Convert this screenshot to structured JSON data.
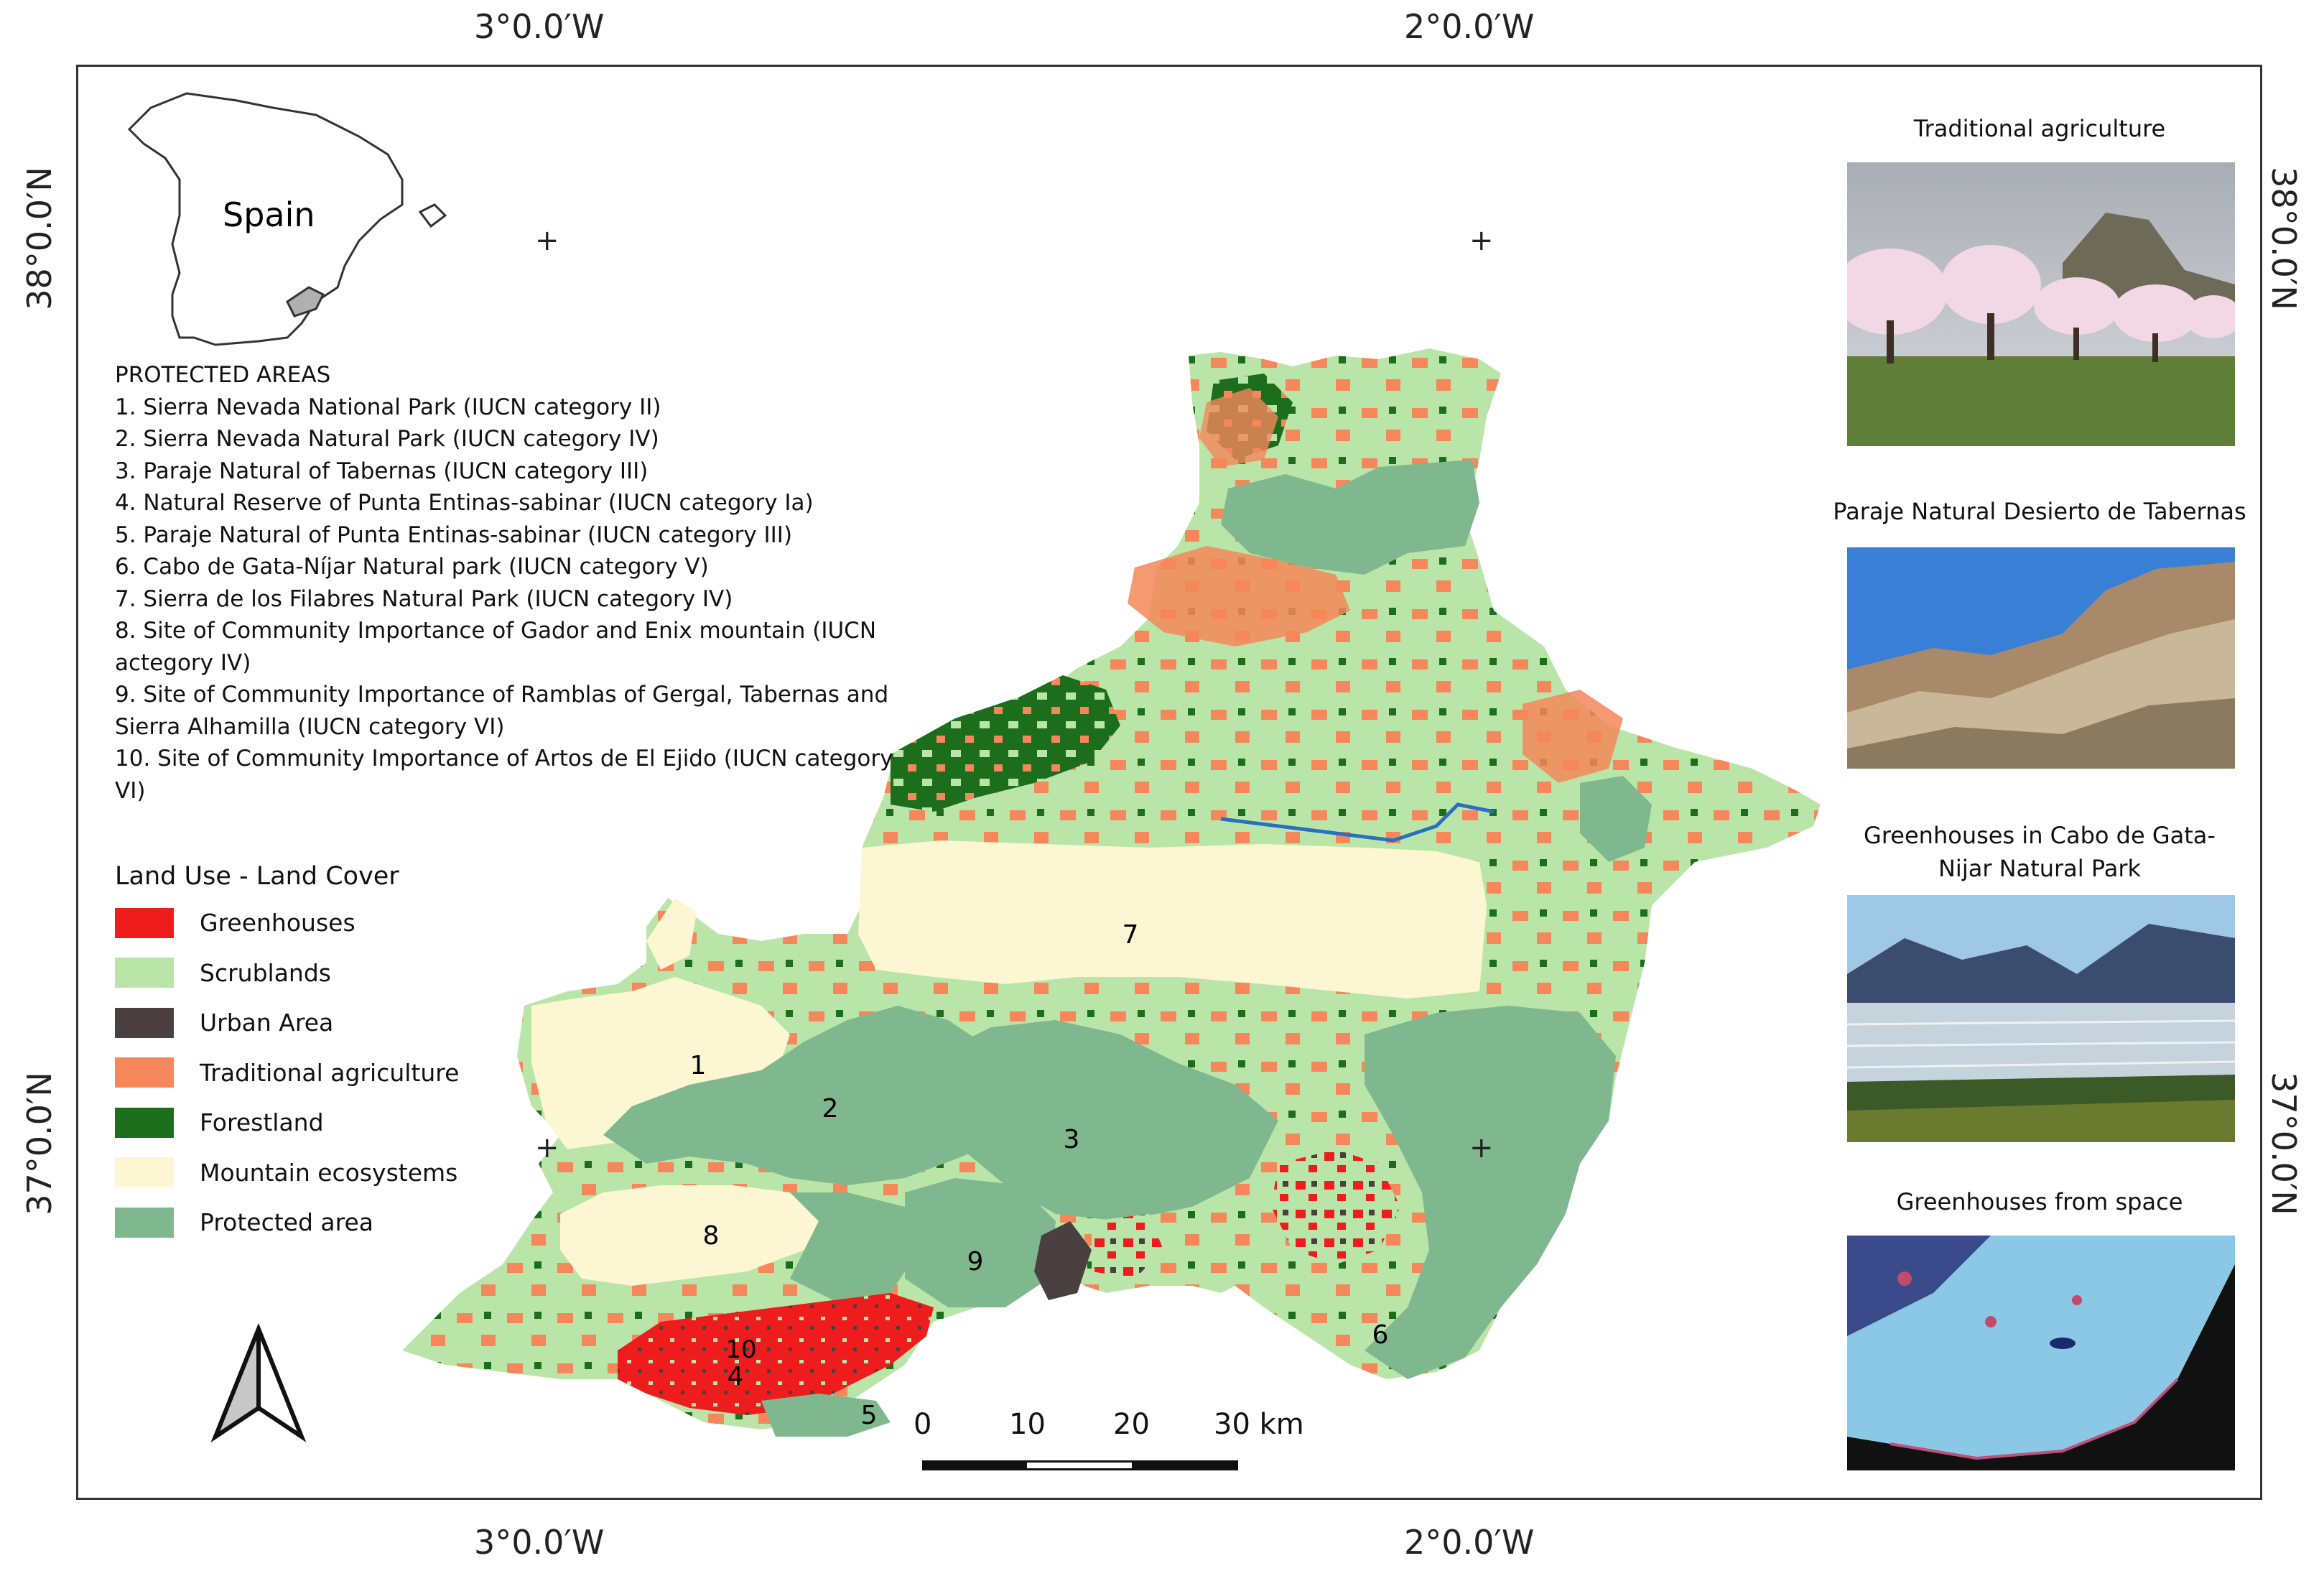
{
  "coordinates": {
    "top_left_lon": "3°0.0′W",
    "top_right_lon": "2°0.0′W",
    "bottom_left_lon": "3°0.0′W",
    "bottom_right_lon": "2°0.0′W",
    "left_top_lat": "38°0.0′N",
    "left_bottom_lat": "37°0.0′N",
    "right_top_lat": "38°0.0′N",
    "right_bottom_lat": "37°0.0′N"
  },
  "inset": {
    "country_label": "Spain"
  },
  "protected_areas": {
    "title": "PROTECTED AREAS",
    "items": [
      "1. Sierra Nevada National Park (IUCN category II)",
      "2. Sierra Nevada Natural Park (IUCN category IV)",
      "3. Paraje Natural of Tabernas (IUCN category III)",
      "4. Natural Reserve of Punta Entinas-sabinar (IUCN category Ia)",
      "5. Paraje Natural of Punta Entinas-sabinar (IUCN category III)",
      "6. Cabo de Gata-Níjar Natural park (IUCN category V)",
      "7. Sierra de los Filabres Natural Park (IUCN category IV)",
      "8. Site of Community Importance of Gador and Enix mountain (IUCN actegory IV)",
      "9. Site of Community Importance of Ramblas of Gergal, Tabernas and Sierra Alhamilla (IUCN category VI)",
      "10. Site of Community Importance of Artos de El Ejido (IUCN category VI)"
    ]
  },
  "land_use": {
    "title": "Land Use - Land Cover",
    "classes": [
      {
        "label": "Greenhouses",
        "color": "#ee1c1c"
      },
      {
        "label": "Scrublands",
        "color": "#b9e6a8"
      },
      {
        "label": "Urban Area",
        "color": "#4a4040"
      },
      {
        "label": "Traditional agriculture",
        "color": "#f5875a"
      },
      {
        "label": "Forestland",
        "color": "#1c6e1c"
      },
      {
        "label": "Mountain ecosystems",
        "color": "#fdf6d2"
      },
      {
        "label": "Protected area",
        "color": "#7fb88f"
      }
    ]
  },
  "area_numbers": [
    "1",
    "2",
    "3",
    "4",
    "5",
    "6",
    "7",
    "8",
    "9",
    "10"
  ],
  "photos": [
    {
      "title": "Traditional agriculture",
      "icon": "almond-orchard-photo"
    },
    {
      "title": "Paraje Natural Desierto de Tabernas",
      "icon": "desert-badlands-photo"
    },
    {
      "title": "Greenhouses in Cabo de Gata-Nijar Natural Park",
      "icon": "greenhouses-landscape-photo"
    },
    {
      "title": "Greenhouses from space",
      "icon": "satellite-image-photo"
    }
  ],
  "scale_bar": {
    "labels": [
      "0",
      "10",
      "20",
      "30 km"
    ]
  },
  "north_arrow": {
    "icon": "north-arrow-icon"
  }
}
